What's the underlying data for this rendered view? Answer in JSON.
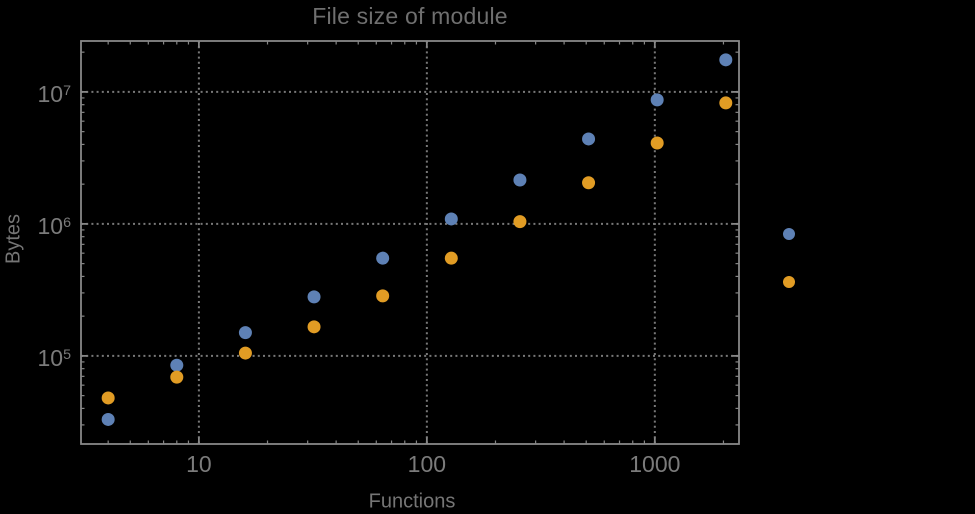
{
  "figure": {
    "title": "File size of module",
    "xlabel": "Functions",
    "ylabel": "Bytes",
    "background": "#000000",
    "colors": {
      "title": "#6f6f6f",
      "axis_labels": "#757575",
      "tick_labels": "#7b7b7b",
      "frame": "#878787",
      "grid": "#787878",
      "series_blue": "#5e81b5",
      "series_orange": "#e19c24"
    }
  },
  "chart_data": {
    "type": "scatter",
    "title": "File size of module",
    "xlabel": "Functions",
    "ylabel": "Bytes",
    "xscale": "log",
    "yscale": "log",
    "xlim": [
      3.04,
      2340
    ],
    "ylim": [
      21500,
      24300000
    ],
    "grid": "dotted lines at decade ticks, both axes",
    "legend_position": "right-outside, markers only (no visible label text)",
    "x": [
      4,
      8,
      16,
      32,
      64,
      128,
      256,
      512,
      1024,
      2048
    ],
    "series": [
      {
        "name": "series-1-blue",
        "color": "#5e81b5",
        "marker": "filled-circle",
        "values": [
          33000,
          85000,
          150000,
          280000,
          550000,
          1090000,
          2150000,
          4400000,
          8700000,
          17500000
        ]
      },
      {
        "name": "series-2-orange",
        "color": "#e19c24",
        "marker": "filled-circle",
        "values": [
          48000,
          69000,
          105000,
          166000,
          285000,
          550000,
          1040000,
          2050000,
          4100000,
          8250000
        ]
      }
    ],
    "x_major_ticks": [
      10,
      100,
      1000
    ],
    "x_tick_labels": [
      "10",
      "100",
      "1000"
    ],
    "y_major_ticks": [
      100000,
      1000000,
      10000000
    ],
    "y_tick_labels": [
      {
        "base": "10",
        "exp": "5"
      },
      {
        "base": "10",
        "exp": "6"
      },
      {
        "base": "10",
        "exp": "7"
      }
    ],
    "legend_markers": [
      {
        "name": "legend-marker-blue",
        "color": "#5e81b5"
      },
      {
        "name": "legend-marker-orange",
        "color": "#e19c24"
      }
    ]
  }
}
